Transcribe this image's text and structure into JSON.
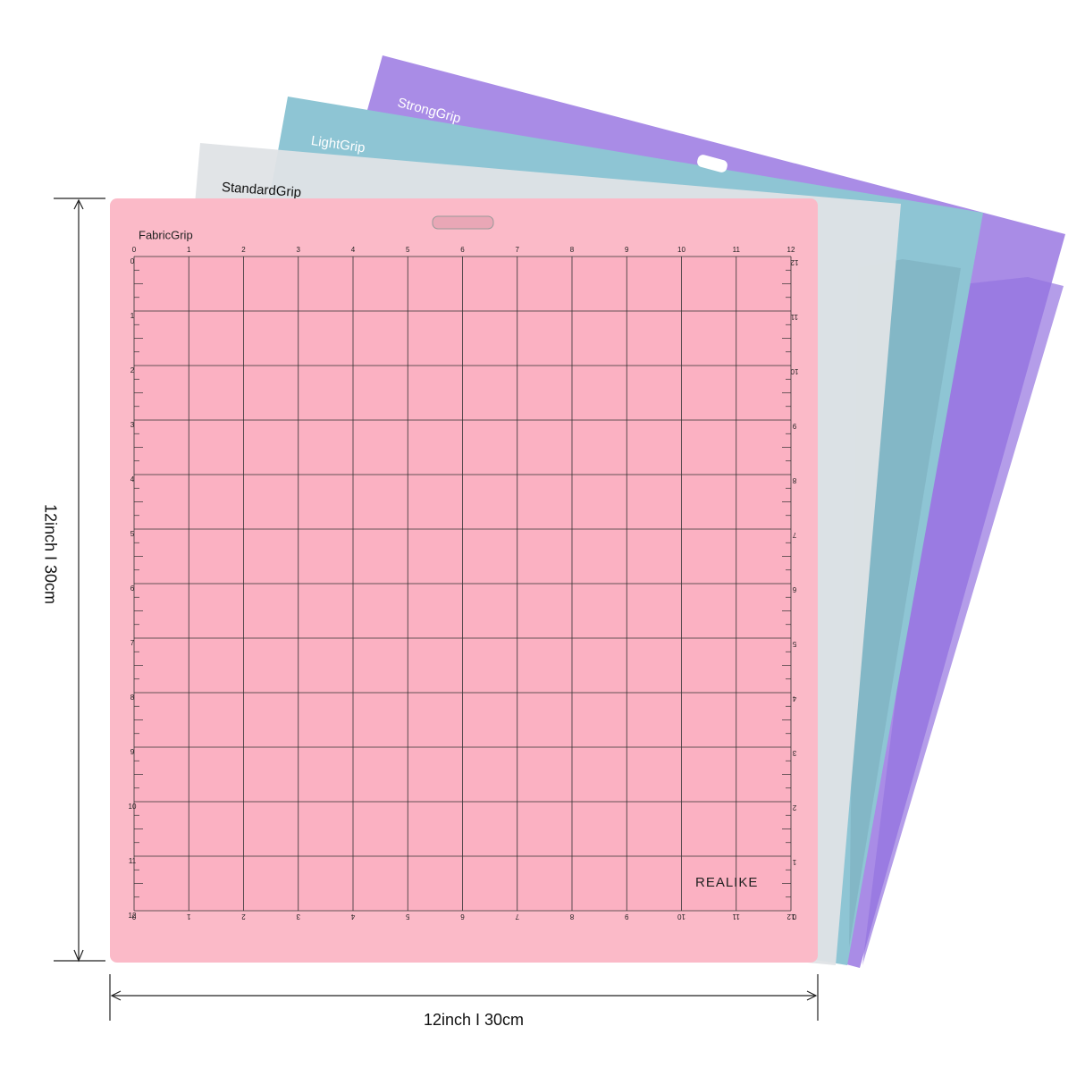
{
  "back_mats": [
    {
      "label": "StrongGrip"
    },
    {
      "label": "LightGrip"
    },
    {
      "label": "StandardGrip"
    }
  ],
  "front_mat": {
    "label": "FabricGrip",
    "brand": "REALIKE",
    "ruler": [
      0,
      1,
      2,
      3,
      4,
      5,
      6,
      7,
      8,
      9,
      10,
      11,
      12
    ]
  },
  "dimensions": {
    "height": "12inch  I  30cm",
    "width": "12inch  I  30cm"
  }
}
